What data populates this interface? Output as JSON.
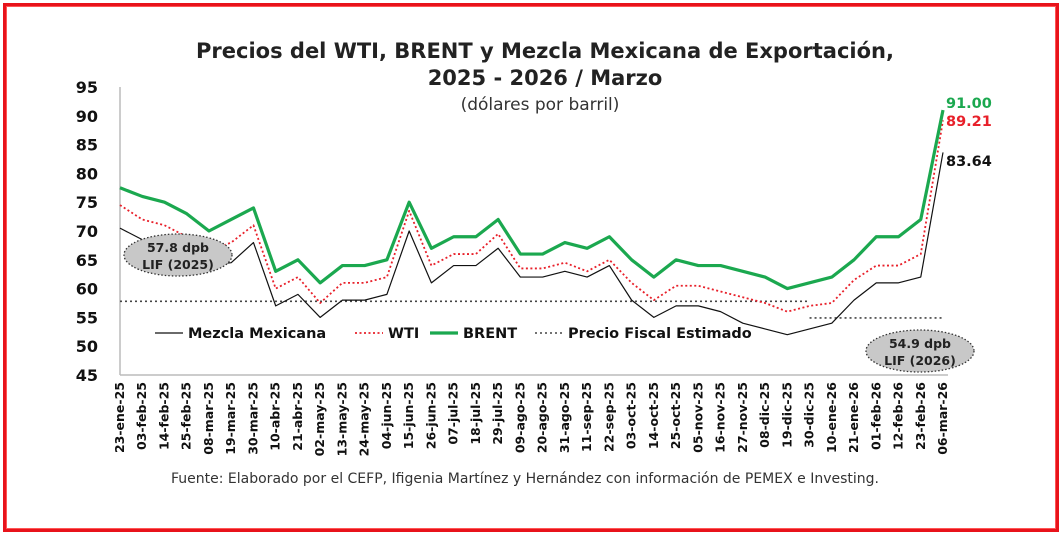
{
  "chart_data": {
    "type": "line",
    "title_line1": "Precios del WTI, BRENT  y Mezcla Mexicana de Exportación,",
    "title_line2": "2025 - 2026 / Marzo",
    "subtitle": "(dólares por barril)",
    "source": "Fuente: Elaborado por el CEFP, Ifigenia Martínez y Hernández con información de PEMEX e Investing.",
    "ylim": [
      45,
      95
    ],
    "yticks": [
      "45",
      "50",
      "55",
      "60",
      "65",
      "70",
      "75",
      "80",
      "85",
      "90",
      "95"
    ],
    "grid": false,
    "legend_placement": "bottom-inside",
    "categories": [
      "23-ene-25",
      "03-feb-25",
      "14-feb-25",
      "25-feb-25",
      "08-mar-25",
      "19-mar-25",
      "30-mar-25",
      "10-abr-25",
      "21-abr-25",
      "02-may-25",
      "13-may-25",
      "24-may-25",
      "04-jun-25",
      "15-jun-25",
      "26-jun-25",
      "07-jul-25",
      "18-jul-25",
      "29-jul-25",
      "09-ago-25",
      "20-ago-25",
      "31-ago-25",
      "11-sep-25",
      "22-sep-25",
      "03-oct-25",
      "14-oct-25",
      "25-oct-25",
      "05-nov-25",
      "16-nov-25",
      "27-nov-25",
      "08-dic-25",
      "19-dic-25",
      "30-dic-25",
      "10-ene-26",
      "21-ene-26",
      "01-feb-26",
      "12-feb-26",
      "23-feb-26",
      "06-mar-26"
    ],
    "series": [
      {
        "name": "Mezcla Mexicana",
        "color": "#111111",
        "style": "solid-thin",
        "end_label": "83.64",
        "values": [
          70.5,
          68.5,
          68,
          67,
          64,
          64.5,
          68,
          57,
          59,
          55,
          58,
          58,
          59,
          70,
          61,
          64,
          64,
          67,
          62,
          62,
          63,
          62,
          64,
          58,
          55,
          57,
          57,
          56,
          54,
          53,
          52,
          53,
          54,
          58,
          61,
          61,
          62,
          83.64
        ]
      },
      {
        "name": "WTI",
        "color": "#e8202a",
        "style": "dotted",
        "end_label": "89.21",
        "values": [
          74.5,
          72,
          71,
          69,
          66.5,
          68,
          71,
          60,
          62,
          57.5,
          61,
          61,
          62,
          73.5,
          64,
          66,
          66,
          69.5,
          63.5,
          63.5,
          64.5,
          63,
          65,
          61,
          58,
          60.5,
          60.5,
          59.5,
          58.5,
          57.5,
          56,
          57,
          57.5,
          61.5,
          64,
          64,
          66,
          89.21
        ]
      },
      {
        "name": "BRENT",
        "color": "#1ba84f",
        "style": "solid-thick",
        "end_label": "91.00",
        "values": [
          77.5,
          76,
          75,
          73,
          70,
          72,
          74,
          63,
          65,
          61,
          64,
          64,
          65,
          75,
          67,
          69,
          69,
          72,
          66,
          66,
          68,
          67,
          69,
          65,
          62,
          65,
          64,
          64,
          63,
          62,
          60,
          61,
          62,
          65,
          69,
          69,
          72,
          91.0
        ]
      },
      {
        "name": "Precio Fiscal Estimado",
        "color": "#444444",
        "style": "dotted-ref",
        "segments": [
          {
            "from": "23-ene-25",
            "to": "30-dic-25",
            "value": 57.8
          },
          {
            "from": "30-dic-25",
            "to": "06-mar-26",
            "value": 54.9
          }
        ]
      }
    ],
    "annotations": [
      {
        "line1": "57.8 dpb",
        "line2": "LIF (2025)"
      },
      {
        "line1": "54.9 dpb",
        "line2": "LIF (2026)"
      }
    ]
  }
}
